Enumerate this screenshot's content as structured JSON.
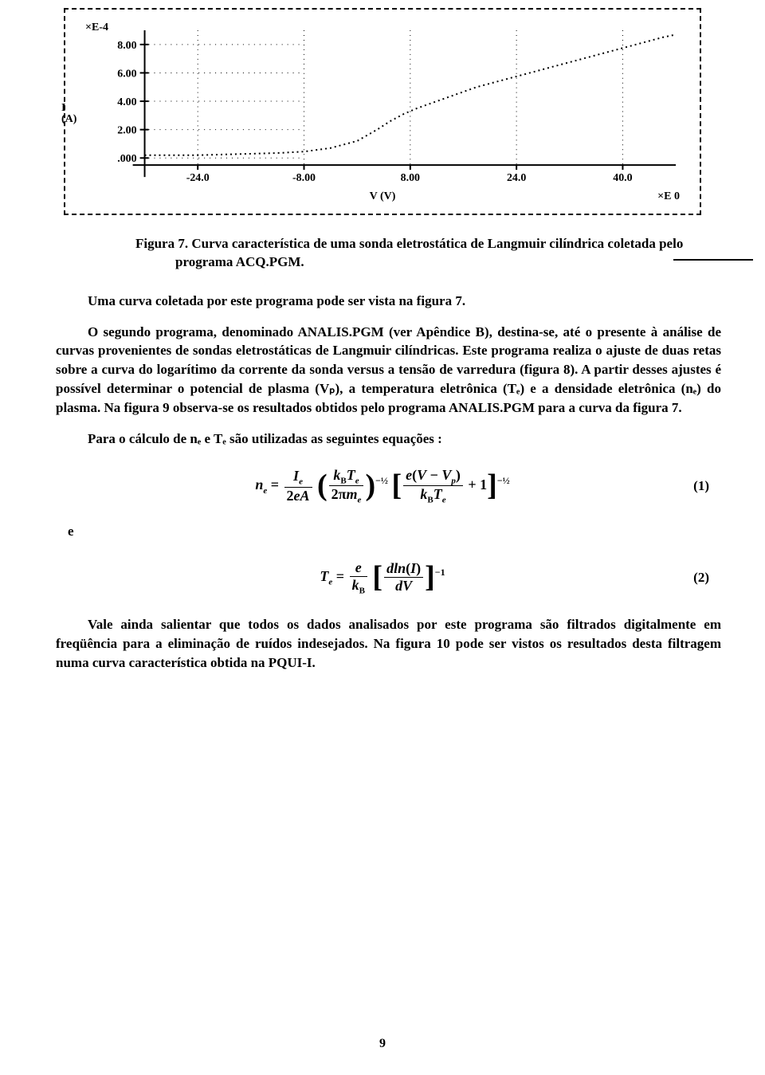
{
  "chart": {
    "type": "line",
    "y_exponent": "×E-4",
    "x_axis_label": "V (V)",
    "x_exponent": "×E 0",
    "y_axis_label": "I\n(A)",
    "y_ticks": [
      "8.00",
      "6.00",
      "4.00",
      "2.00",
      ".000"
    ],
    "y_tick_values": [
      8,
      6,
      4,
      2,
      0
    ],
    "x_ticks": [
      "-24.0",
      "-8.00",
      "8.00",
      "24.0",
      "40.0"
    ],
    "x_tick_values": [
      -24,
      -8,
      8,
      24,
      40
    ],
    "xlim": [
      -32,
      48
    ],
    "ylim": [
      -0.5,
      9
    ],
    "curve_points": [
      [
        -32,
        0.2
      ],
      [
        -28,
        0.2
      ],
      [
        -24,
        0.2
      ],
      [
        -20,
        0.25
      ],
      [
        -16,
        0.3
      ],
      [
        -12,
        0.35
      ],
      [
        -8,
        0.45
      ],
      [
        -4,
        0.7
      ],
      [
        0,
        1.2
      ],
      [
        3,
        2.0
      ],
      [
        5,
        2.6
      ],
      [
        7,
        3.1
      ],
      [
        9,
        3.5
      ],
      [
        12,
        4.0
      ],
      [
        15,
        4.5
      ],
      [
        18,
        5.0
      ],
      [
        22,
        5.5
      ],
      [
        26,
        6.0
      ],
      [
        30,
        6.5
      ],
      [
        34,
        7.0
      ],
      [
        38,
        7.5
      ],
      [
        42,
        8.0
      ],
      [
        46,
        8.5
      ],
      [
        48,
        8.7
      ]
    ],
    "grid_color": "#000000",
    "line_style": "dotted",
    "background_color": "#ffffff"
  },
  "caption": "Figura 7. Curva característica de uma sonda eletrostática de Langmuir cilíndrica coletada pelo programa ACQ.PGM.",
  "para1": "Uma curva coletada por este programa pode ser vista na figura 7.",
  "para2": "O segundo programa, denominado ANALIS.PGM (ver Apêndice B), destina-se, até o presente à análise de curvas provenientes de sondas eletrostáticas de Langmuir cilíndricas. Este programa realiza o ajuste de duas retas sobre a curva do logarítimo da corrente da sonda versus a tensão de varredura (figura 8). A partir desses ajustes é possível determinar o potencial de plasma (Vₚ), a temperatura eletrônica (Tₑ) e a densidade eletrônica (nₑ) do plasma. Na figura 9 observa-se os resultados obtidos pelo programa ANALIS.PGM para a curva da figura 7.",
  "para3": "Para o cálculo de nₑ e Tₑ são utilizadas as seguintes equações :",
  "eq1_num": "(1)",
  "connector": "e",
  "eq2_num": "(2)",
  "para4": "Vale ainda salientar que todos os dados analisados por este programa são filtrados digitalmente em freqüência para a eliminação de ruídos indesejados. Na figura 10 pode ser vistos os resultados desta filtragem numa curva característica obtida na PQUI-I.",
  "page_number": "9",
  "equations": {
    "eq1_lhs": "nₑ",
    "eq1_frac1_num": "Iₑ",
    "eq1_frac1_den": "2eA",
    "eq1_frac2_num": "k_BTₑ",
    "eq1_frac2_den": "2πmₑ",
    "eq1_exp1": "-½",
    "eq1_frac3_num": "e(V − Vₚ)",
    "eq1_frac3_den": "k_BTₑ",
    "eq1_plus": "+ 1",
    "eq1_exp2": "-½",
    "eq2_lhs": "Tₑ",
    "eq2_frac1_num": "e",
    "eq2_frac1_den": "k_B",
    "eq2_frac2_num": "dln(I)",
    "eq2_frac2_den": "dV",
    "eq2_exp": "-1"
  }
}
